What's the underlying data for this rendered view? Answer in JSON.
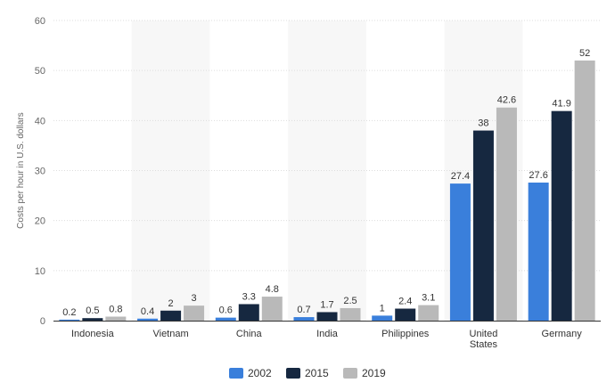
{
  "chart_data": {
    "type": "bar",
    "categories": [
      "Indonesia",
      "Vietnam",
      "China",
      "India",
      "Philippines",
      [
        "United",
        "States"
      ],
      "Germany"
    ],
    "series": [
      {
        "name": "2002",
        "color": "#3a7fdb",
        "values": [
          0.2,
          0.4,
          0.6,
          0.7,
          1,
          27.4,
          27.6
        ]
      },
      {
        "name": "2015",
        "color": "#162840",
        "values": [
          0.5,
          2,
          3.3,
          1.7,
          2.4,
          38,
          41.9
        ]
      },
      {
        "name": "2019",
        "color": "#b9b9b9",
        "values": [
          0.8,
          3,
          4.8,
          2.5,
          3.1,
          42.6,
          52
        ]
      }
    ],
    "ylabel": "Costs per hour in U.S. dollars",
    "ylim": [
      0,
      60
    ],
    "yticks": [
      0,
      10,
      20,
      30,
      40,
      50,
      60
    ],
    "grid": true,
    "legend_position": "bottom-center",
    "band_color": "#f7f7f7"
  }
}
